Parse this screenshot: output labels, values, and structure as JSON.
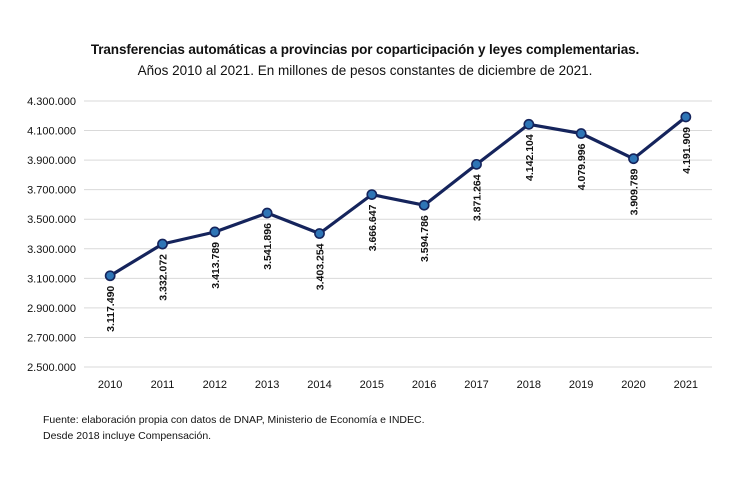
{
  "chart_data": {
    "type": "line",
    "title": "Transferencias automáticas a provincias por coparticipación y leyes complementarias.",
    "subtitle": "Años 2010 al 2021. En millones de pesos constantes de diciembre de 2021.",
    "xlabel": "",
    "ylabel": "",
    "categories": [
      "2010",
      "2011",
      "2012",
      "2013",
      "2014",
      "2015",
      "2016",
      "2017",
      "2018",
      "2019",
      "2020",
      "2021"
    ],
    "series": [
      {
        "values": [
          3117490,
          3332072,
          3413789,
          3541896,
          3403254,
          3666647,
          3594786,
          3871264,
          4142104,
          4079996,
          3909789,
          4191909
        ],
        "labels": [
          "3.117.490",
          "3.332.072",
          "3.413.789",
          "3.541.896",
          "3.403.254",
          "3.666.647",
          "3.594.786",
          "3.871.264",
          "4.142.104",
          "4.079.996",
          "3.909.789",
          "4.191.909"
        ]
      }
    ],
    "ylim": [
      2500000,
      4300000
    ],
    "yticks": [
      2500000,
      2700000,
      2900000,
      3100000,
      3300000,
      3500000,
      3700000,
      3900000,
      4100000,
      4300000
    ],
    "ytick_labels": [
      "2.500.000",
      "2.700.000",
      "2.900.000",
      "3.100.000",
      "3.300.000",
      "3.500.000",
      "3.700.000",
      "3.900.000",
      "4.100.000",
      "4.300.000"
    ],
    "grid": true,
    "legend": "none",
    "colors": {
      "line": "#15245c",
      "marker_fill": "#2e75b6",
      "marker_stroke": "#15245c",
      "grid": "#d9d9d9"
    }
  },
  "notes": {
    "source": "Fuente: elaboración propia con datos de DNAP, Ministerio de Economía e INDEC.",
    "compensation": "Desde 2018 incluye Compensación."
  }
}
